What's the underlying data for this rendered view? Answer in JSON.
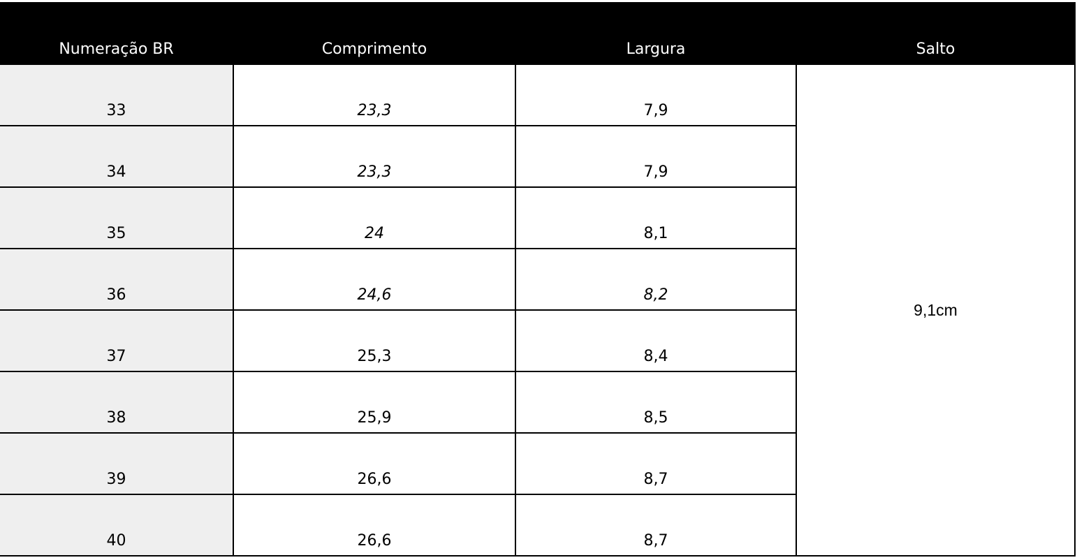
{
  "table": {
    "header": [
      "Numeração BR",
      "Comprimento",
      "Largura",
      "Salto"
    ],
    "rows": [
      [
        "33",
        "23,3",
        "7,9"
      ],
      [
        "34",
        "23,3",
        "7,9"
      ],
      [
        "35",
        "24",
        "8,1"
      ],
      [
        "36",
        "24,6",
        "8,2"
      ],
      [
        "37",
        "25,3",
        "8,4"
      ],
      [
        "38",
        "25,9",
        "8,5"
      ],
      [
        "39",
        "26,6",
        "8,7"
      ],
      [
        "40",
        "26,6",
        "8,7"
      ]
    ],
    "salto": "9,1cm"
  }
}
